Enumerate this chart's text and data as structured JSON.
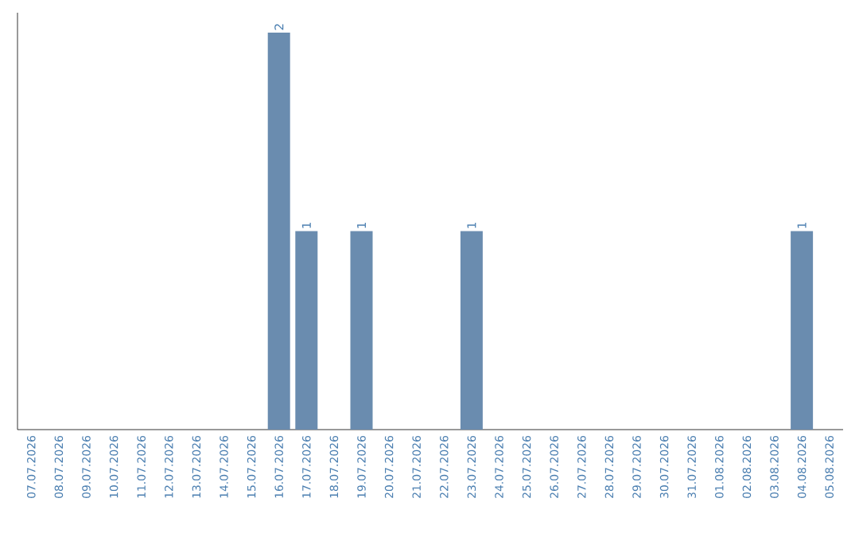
{
  "chart_data": {
    "type": "bar",
    "categories": [
      "07.07.2026",
      "08.07.2026",
      "09.07.2026",
      "10.07.2026",
      "11.07.2026",
      "12.07.2026",
      "13.07.2026",
      "14.07.2026",
      "15.07.2026",
      "16.07.2026",
      "17.07.2026",
      "18.07.2026",
      "19.07.2026",
      "20.07.2026",
      "21.07.2026",
      "22.07.2026",
      "23.07.2026",
      "24.07.2026",
      "25.07.2026",
      "26.07.2026",
      "27.07.2026",
      "28.07.2026",
      "29.07.2026",
      "30.07.2026",
      "31.07.2026",
      "01.08.2026",
      "02.08.2026",
      "03.08.2026",
      "04.08.2026",
      "05.08.2026"
    ],
    "values": [
      0,
      0,
      0,
      0,
      0,
      0,
      0,
      0,
      0,
      2,
      1,
      0,
      1,
      0,
      0,
      0,
      1,
      0,
      0,
      0,
      0,
      0,
      0,
      0,
      0,
      0,
      0,
      0,
      1,
      0
    ],
    "value_labels": [
      null,
      null,
      null,
      null,
      null,
      null,
      null,
      null,
      null,
      "2",
      "1",
      null,
      "1",
      null,
      null,
      null,
      "1",
      null,
      null,
      null,
      null,
      null,
      null,
      null,
      null,
      null,
      null,
      null,
      "1",
      null
    ],
    "color": "#6a8caf",
    "ylim": [
      0,
      2.1
    ],
    "tick_labels": "x",
    "grid": false
  }
}
